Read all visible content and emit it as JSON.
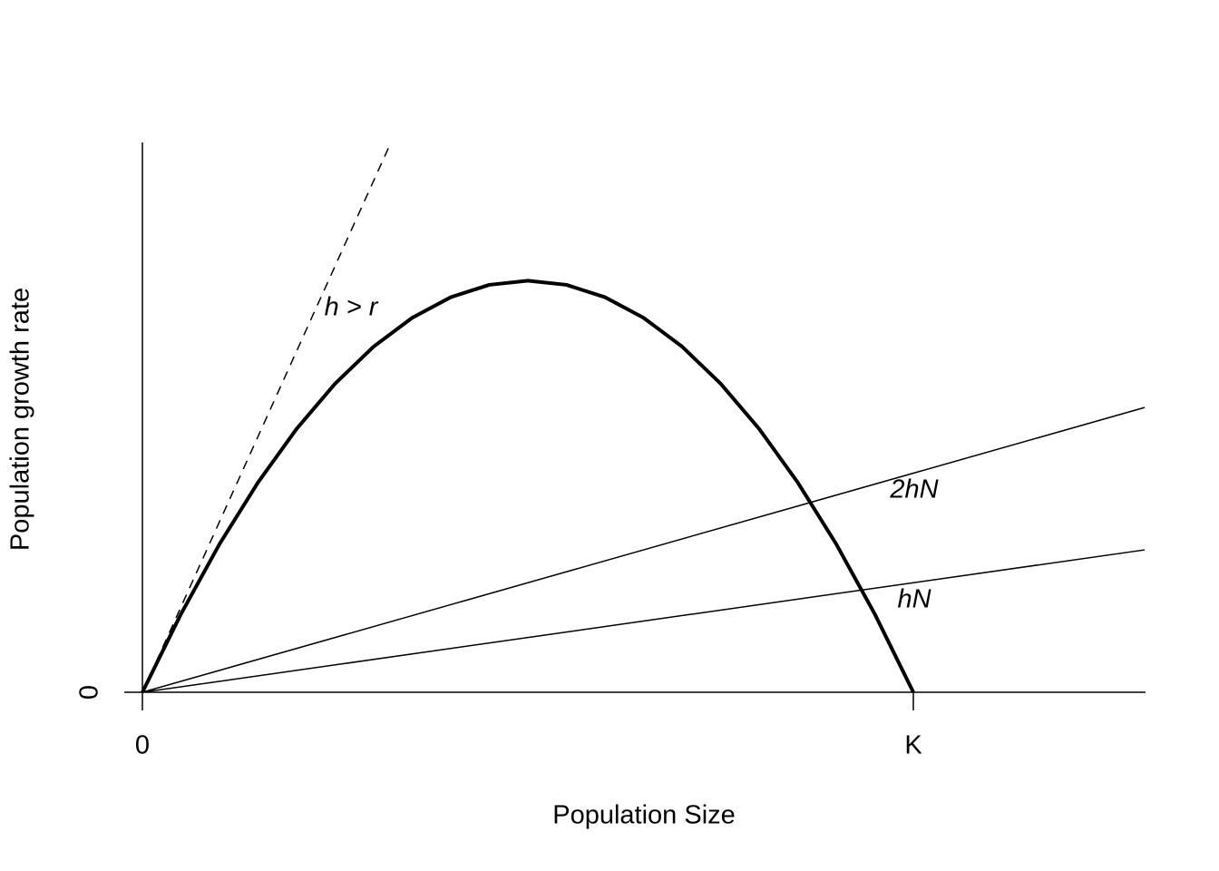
{
  "chart_data": {
    "type": "line",
    "x_label": "Population Size",
    "y_label": "Population growth rate",
    "xlim": [
      0,
      1.3
    ],
    "ylim": [
      0,
      0.334
    ],
    "xticks": [
      0,
      {
        "value": 1,
        "label": "K"
      }
    ],
    "yticks": [
      0
    ],
    "grid": false,
    "series": [
      {
        "color": "#000000",
        "linewidth": 4,
        "dashed": false,
        "x": [
          0,
          0.05,
          0.1,
          0.15,
          0.2,
          0.25,
          0.3,
          0.35,
          0.4,
          0.45,
          0.5,
          0.55,
          0.6,
          0.65,
          0.7,
          0.75,
          0.8,
          0.85,
          0.9,
          0.95,
          1
        ],
        "values": [
          0,
          0.0475,
          0.09,
          0.1275,
          0.16,
          0.1875,
          0.21,
          0.2275,
          0.24,
          0.2475,
          0.25,
          0.2475,
          0.24,
          0.2275,
          0.21,
          0.1875,
          0.16,
          0.1275,
          0.09,
          0.0475,
          0
        ]
      },
      {
        "name": "h > r",
        "color": "#000000",
        "linewidth": 1.5,
        "dashed": true,
        "x": [
          0,
          0.3224
        ],
        "values": [
          0,
          0.334
        ]
      },
      {
        "name": "2hN",
        "color": "#000000",
        "linewidth": 1.5,
        "dashed": false,
        "x": [
          0,
          1.3
        ],
        "values": [
          0,
          0.173
        ]
      },
      {
        "name": "hN",
        "color": "#000000",
        "linewidth": 1.5,
        "dashed": false,
        "x": [
          0,
          1.3
        ],
        "values": [
          0,
          0.0865
        ]
      }
    ]
  }
}
